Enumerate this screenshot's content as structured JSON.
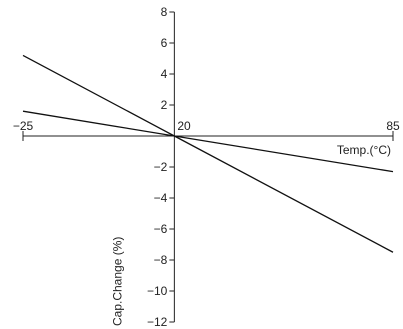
{
  "chart_data": {
    "type": "line",
    "title": "",
    "xlabel": "Temp.(°C)",
    "ylabel": "Cap.Change (%)",
    "xlim": [
      -25,
      85
    ],
    "ylim": [
      -12,
      8
    ],
    "x_ticks_labeled": [
      -25,
      20,
      85
    ],
    "y_ticks": [
      8,
      6,
      4,
      2,
      -2,
      -4,
      -6,
      -8,
      -10,
      -12
    ],
    "grid": false,
    "legend": "none",
    "series": [
      {
        "x": [
          -25,
          20,
          85
        ],
        "y": [
          5.2,
          0,
          -7.5
        ]
      },
      {
        "x": [
          -25,
          20,
          85
        ],
        "y": [
          1.6,
          0,
          -2.3
        ]
      }
    ]
  }
}
